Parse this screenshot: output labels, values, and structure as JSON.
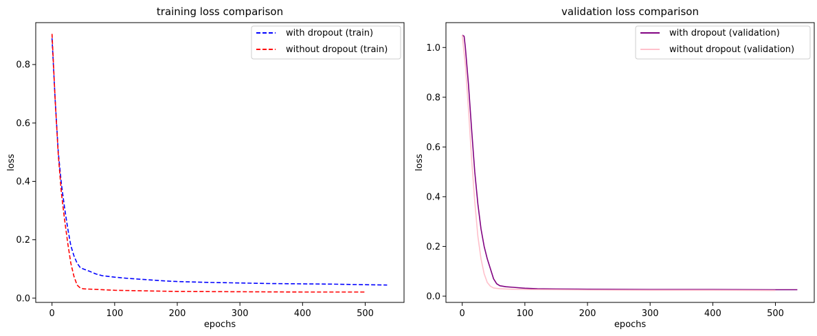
{
  "chart_data": [
    {
      "type": "line",
      "title": "training loss comparison",
      "xlabel": "epochs",
      "ylabel": "loss",
      "xlim": [
        -26,
        562
      ],
      "ylim": [
        -0.0145,
        0.9435
      ],
      "xticks": [
        0,
        100,
        200,
        300,
        400,
        500
      ],
      "yticks": [
        0.0,
        0.2,
        0.4,
        0.6,
        0.8
      ],
      "xtick_labels": [
        "0",
        "100",
        "200",
        "300",
        "400",
        "500"
      ],
      "ytick_labels": [
        "0.0",
        "0.2",
        "0.4",
        "0.6",
        "0.8"
      ],
      "legend_position": "top-right",
      "grid": false,
      "series": [
        {
          "name": "with dropout (train)",
          "color": "#0000ff",
          "style": "dashed",
          "x": [
            0,
            5,
            10,
            15,
            20,
            25,
            30,
            35,
            40,
            45,
            50,
            60,
            70,
            80,
            100,
            120,
            140,
            160,
            180,
            200,
            250,
            300,
            350,
            400,
            450,
            500,
            535
          ],
          "y": [
            0.89,
            0.68,
            0.5,
            0.39,
            0.31,
            0.24,
            0.18,
            0.145,
            0.12,
            0.105,
            0.1,
            0.092,
            0.083,
            0.077,
            0.072,
            0.068,
            0.065,
            0.062,
            0.059,
            0.057,
            0.054,
            0.052,
            0.05,
            0.049,
            0.048,
            0.046,
            0.045
          ]
        },
        {
          "name": "without dropout (train)",
          "color": "#ff0000",
          "style": "dashed",
          "x": [
            0,
            5,
            10,
            15,
            20,
            25,
            30,
            35,
            40,
            45,
            50,
            60,
            80,
            100,
            150,
            200,
            300,
            400,
            500
          ],
          "y": [
            0.905,
            0.68,
            0.49,
            0.36,
            0.27,
            0.19,
            0.12,
            0.075,
            0.045,
            0.035,
            0.032,
            0.031,
            0.029,
            0.027,
            0.025,
            0.023,
            0.022,
            0.021,
            0.021
          ]
        }
      ]
    },
    {
      "type": "line",
      "title": "validation loss comparison",
      "xlabel": "epochs",
      "ylabel": "loss",
      "xlim": [
        -26,
        562
      ],
      "ylim": [
        -0.025,
        1.1
      ],
      "xticks": [
        0,
        100,
        200,
        300,
        400,
        500
      ],
      "yticks": [
        0.0,
        0.2,
        0.4,
        0.6,
        0.8,
        1.0
      ],
      "xtick_labels": [
        "0",
        "100",
        "200",
        "300",
        "400",
        "500"
      ],
      "ytick_labels": [
        "0.0",
        "0.2",
        "0.4",
        "0.6",
        "0.8",
        "1.0"
      ],
      "legend_position": "top-right",
      "grid": false,
      "series": [
        {
          "name": "with dropout (validation)",
          "color": "#800080",
          "style": "solid",
          "x": [
            0,
            3,
            5,
            10,
            15,
            20,
            25,
            30,
            35,
            40,
            45,
            50,
            55,
            60,
            70,
            80,
            100,
            120,
            150,
            200,
            300,
            400,
            500,
            535
          ],
          "y": [
            1.05,
            1.045,
            1.0,
            0.85,
            0.67,
            0.5,
            0.37,
            0.27,
            0.2,
            0.15,
            0.11,
            0.07,
            0.05,
            0.042,
            0.038,
            0.036,
            0.032,
            0.03,
            0.029,
            0.028,
            0.027,
            0.027,
            0.026,
            0.026
          ]
        },
        {
          "name": "without dropout (validation)",
          "color": "#ffc0cb",
          "style": "solid",
          "x": [
            0,
            5,
            10,
            15,
            20,
            25,
            30,
            35,
            40,
            45,
            50,
            60,
            70,
            80,
            100,
            150,
            200,
            300,
            400,
            500
          ],
          "y": [
            1.05,
            0.93,
            0.75,
            0.55,
            0.38,
            0.24,
            0.15,
            0.09,
            0.055,
            0.04,
            0.033,
            0.03,
            0.029,
            0.028,
            0.027,
            0.026,
            0.025,
            0.024,
            0.024,
            0.023
          ]
        }
      ]
    }
  ]
}
